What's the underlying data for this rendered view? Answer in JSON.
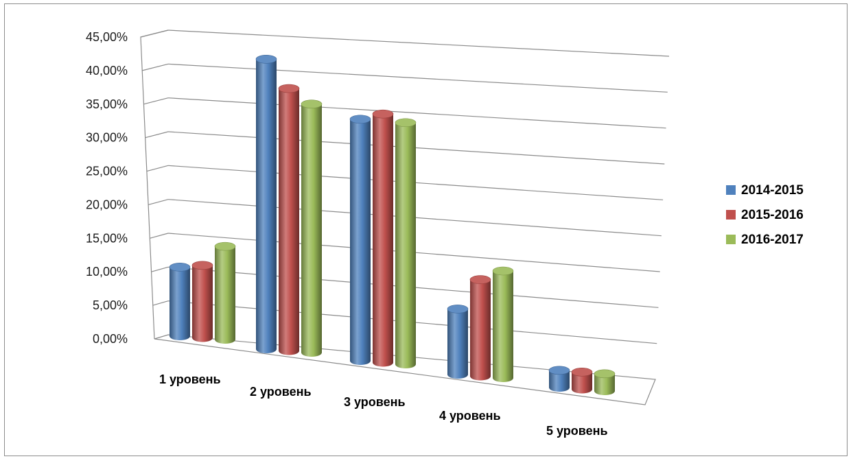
{
  "chart_data": {
    "type": "bar",
    "style": "3d-cylinder",
    "categories": [
      "1 уровень",
      "2 уровень",
      "3 уровень",
      "4 уровень",
      "5 уровень"
    ],
    "series": [
      {
        "name": "2014-2015",
        "color": "#4f81bd",
        "values": [
          10.0,
          42.0,
          35.0,
          9.5,
          2.5
        ]
      },
      {
        "name": "2015-2016",
        "color": "#c0504d",
        "values": [
          10.5,
          38.0,
          36.0,
          14.0,
          2.5
        ]
      },
      {
        "name": "2016-2017",
        "color": "#9bbb59",
        "values": [
          13.5,
          36.0,
          35.0,
          15.5,
          2.5
        ]
      }
    ],
    "y_ticks": [
      "0,00%",
      "5,00%",
      "10,00%",
      "15,00%",
      "20,00%",
      "25,00%",
      "30,00%",
      "35,00%",
      "40,00%",
      "45,00%"
    ],
    "ylim": [
      0,
      45
    ],
    "y_step": 5,
    "grid": true,
    "legend_position": "right"
  }
}
